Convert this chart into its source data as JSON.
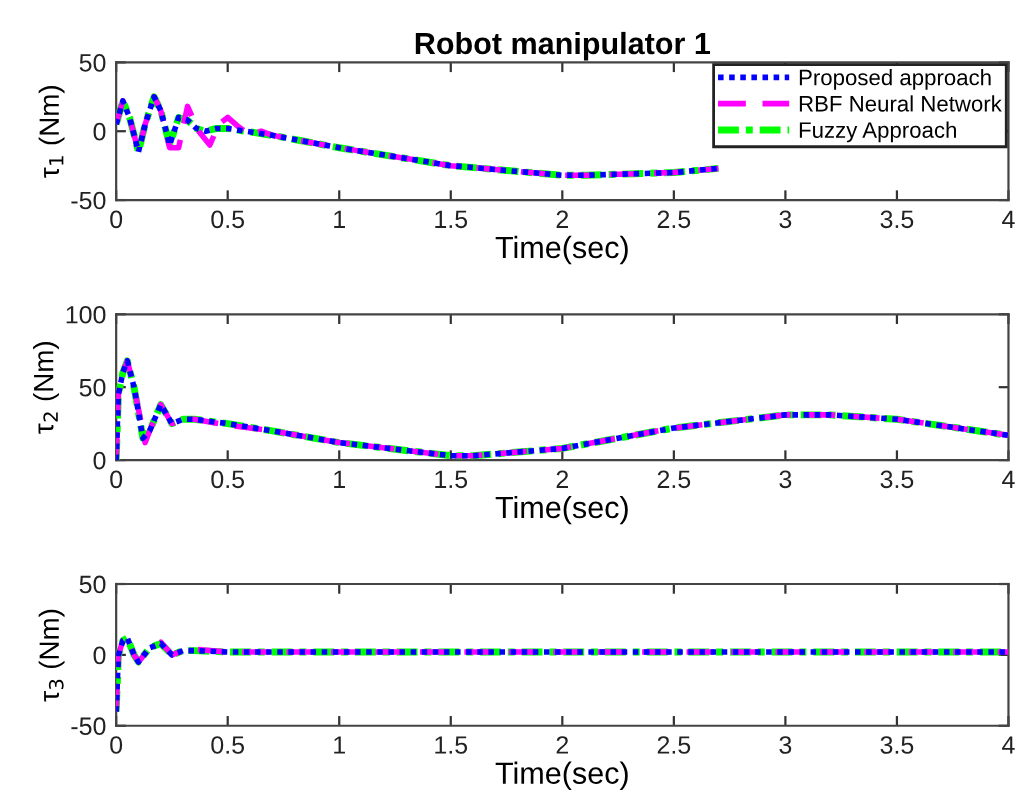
{
  "chart_data": [
    {
      "type": "line",
      "title": "Robot manipulator 1",
      "xlabel": "Time(sec)",
      "ylabel": "τ$_{1}$ (Nm)",
      "xlim": [
        0,
        4
      ],
      "xticks": [
        0,
        0.5,
        1,
        1.5,
        2,
        2.5,
        3,
        3.5,
        4
      ],
      "ylim": [
        -50,
        50
      ],
      "yticks": [
        -50,
        0,
        50
      ],
      "grid": false,
      "legend": "top right",
      "series": [
        {
          "name": "Proposed approach",
          "color": "#0000ff",
          "line_style": "dotted",
          "x": [
            0,
            0.03,
            0.06,
            0.1,
            0.13,
            0.17,
            0.2,
            0.24,
            0.28,
            0.32,
            0.36,
            0.4,
            0.45,
            0.5,
            0.7,
            1,
            1.5,
            2,
            2.1,
            2.5,
            2.7
          ],
          "values": [
            5,
            22,
            10,
            -15,
            5,
            25,
            15,
            -10,
            10,
            8,
            2,
            0,
            2,
            2,
            -3,
            -12,
            -25,
            -32,
            -32,
            -30,
            -27
          ]
        },
        {
          "name": "RBF Neural Network",
          "color": "#ff00ff",
          "line_style": "dashed",
          "x": [
            0,
            0.03,
            0.06,
            0.1,
            0.13,
            0.17,
            0.2,
            0.24,
            0.28,
            0.32,
            0.37,
            0.42,
            0.46,
            0.5,
            0.55,
            0.6,
            0.65,
            0.7,
            1,
            1.5,
            2,
            2.1,
            2.5,
            2.7
          ],
          "values": [
            5,
            22,
            10,
            -15,
            5,
            25,
            15,
            -12,
            -12,
            18,
            0,
            -10,
            5,
            10,
            3,
            -3,
            0,
            -3,
            -12,
            -25,
            -32,
            -32,
            -30,
            -27
          ]
        },
        {
          "name": "Fuzzy Approach",
          "color": "#00ff00",
          "line_style": "dashdot",
          "x": [
            0,
            0.03,
            0.06,
            0.1,
            0.13,
            0.17,
            0.2,
            0.24,
            0.28,
            0.32,
            0.36,
            0.4,
            0.45,
            0.5,
            0.7,
            1,
            1.5,
            2,
            2.1,
            2.5,
            2.7
          ],
          "values": [
            5,
            22,
            10,
            -15,
            5,
            25,
            15,
            -10,
            10,
            8,
            2,
            0,
            2,
            2,
            -3,
            -12,
            -25,
            -32,
            -32,
            -30,
            -27
          ]
        }
      ]
    },
    {
      "type": "line",
      "xlabel": "Time(sec)",
      "ylabel": "τ$_{2}$ (Nm)",
      "xlim": [
        0,
        4
      ],
      "xticks": [
        0,
        0.5,
        1,
        1.5,
        2,
        2.5,
        3,
        3.5,
        4
      ],
      "ylim": [
        0,
        100
      ],
      "yticks": [
        0,
        50,
        100
      ],
      "grid": false,
      "series": [
        {
          "color": "#0000ff",
          "line_style": "dotted",
          "x": [
            0,
            0.01,
            0.03,
            0.05,
            0.08,
            0.12,
            0.15,
            0.2,
            0.25,
            0.3,
            0.35,
            0.5,
            0.7,
            1,
            1.5,
            1.6,
            2,
            2.5,
            3,
            3.2,
            3.5,
            4
          ],
          "values": [
            0,
            45,
            60,
            68,
            50,
            15,
            20,
            38,
            25,
            28,
            28,
            25,
            20,
            12,
            3,
            3,
            8,
            22,
            31,
            31,
            28,
            17
          ]
        },
        {
          "color": "#ff00ff",
          "line_style": "dashed",
          "x": [
            0,
            0.01,
            0.03,
            0.05,
            0.08,
            0.13,
            0.15,
            0.2,
            0.25,
            0.3,
            0.35,
            0.5,
            0.7,
            1,
            1.5,
            1.6,
            2,
            2.5,
            3,
            3.2,
            3.5,
            4
          ],
          "values": [
            0,
            45,
            60,
            68,
            50,
            12,
            20,
            38,
            25,
            28,
            28,
            24,
            20,
            12,
            3,
            3,
            8,
            22,
            31,
            31,
            28,
            17
          ]
        },
        {
          "color": "#00ff00",
          "line_style": "dashdot",
          "x": [
            0,
            0.01,
            0.03,
            0.05,
            0.08,
            0.12,
            0.15,
            0.2,
            0.25,
            0.3,
            0.35,
            0.5,
            0.7,
            1,
            1.5,
            1.6,
            2,
            2.5,
            3,
            3.2,
            3.5,
            4
          ],
          "values": [
            0,
            45,
            60,
            68,
            50,
            15,
            20,
            38,
            25,
            28,
            28,
            25,
            20,
            12,
            3,
            3,
            8,
            22,
            31,
            31,
            28,
            17
          ]
        }
      ]
    },
    {
      "type": "line",
      "xlabel": "Time(sec)",
      "ylabel": "τ$_{3}$ (Nm)",
      "xlim": [
        0,
        4
      ],
      "xticks": [
        0,
        0.5,
        1,
        1.5,
        2,
        2.5,
        3,
        3.5,
        4
      ],
      "ylim": [
        -50,
        50
      ],
      "yticks": [
        -50,
        0,
        50
      ],
      "grid": false,
      "series": [
        {
          "color": "#0000ff",
          "line_style": "dotted",
          "x": [
            0,
            0.01,
            0.03,
            0.05,
            0.08,
            0.1,
            0.15,
            0.2,
            0.25,
            0.3,
            0.35,
            0.5,
            1,
            2,
            3,
            4
          ],
          "values": [
            -40,
            0,
            10,
            12,
            0,
            -5,
            5,
            8,
            0,
            3,
            3,
            2,
            2,
            2,
            2,
            2
          ]
        },
        {
          "color": "#ff00ff",
          "line_style": "dashed",
          "x": [
            0,
            0.01,
            0.03,
            0.05,
            0.08,
            0.1,
            0.15,
            0.2,
            0.25,
            0.3,
            0.35,
            0.5,
            1,
            2,
            3,
            4
          ],
          "values": [
            -40,
            0,
            10,
            12,
            0,
            -5,
            5,
            9,
            0,
            3,
            4,
            2,
            2,
            2,
            2,
            2
          ]
        },
        {
          "color": "#00ff00",
          "line_style": "dashdot",
          "x": [
            0,
            0.01,
            0.03,
            0.05,
            0.08,
            0.1,
            0.15,
            0.2,
            0.25,
            0.3,
            0.35,
            0.5,
            1,
            2,
            3,
            4
          ],
          "values": [
            -40,
            0,
            10,
            12,
            0,
            -5,
            5,
            8,
            0,
            3,
            3,
            2,
            2,
            2,
            2,
            2
          ]
        }
      ]
    }
  ]
}
